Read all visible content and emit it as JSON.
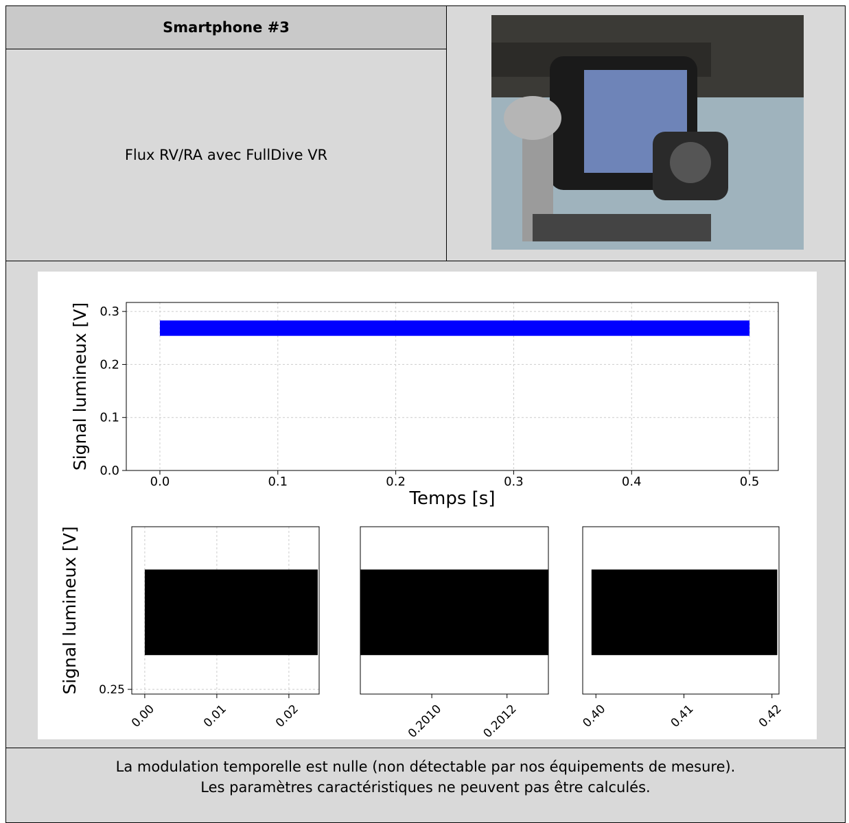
{
  "header": {
    "title": "Smartphone #3",
    "description": "Flux RV/RA avec FullDive VR"
  },
  "footer": {
    "lines": [
      "La modulation temporelle est nulle (non détectable par nos équipements de mesure).",
      "Les paramètres caractéristiques ne peuvent pas être calculés."
    ]
  },
  "chart_data": [
    {
      "type": "band",
      "xlabel": "Temps [s]",
      "ylabel": "Signal lumineux [V]",
      "color": "#0000ff",
      "grid": true,
      "x_range": [
        0,
        0.5
      ],
      "band": [
        0.254,
        0.283
      ],
      "xlim": [
        -0.0285,
        0.5244
      ],
      "ylim": [
        0,
        0.317
      ],
      "xticks": [
        {
          "value": 0,
          "label": "0.0"
        },
        0.1,
        0.2,
        0.3,
        0.4,
        0.5
      ],
      "yticks": [
        {
          "value": 0,
          "label": "0.0"
        },
        0.1,
        0.2,
        0.3
      ]
    },
    {
      "type": "band",
      "ylabel": "Signal lumineux [V]",
      "color": "#000000",
      "grid": true,
      "x_range": [
        0,
        0.024
      ],
      "band": [
        0.258,
        0.278
      ],
      "xlim": [
        -0.0018,
        0.0242
      ],
      "ylim": [
        0.2489,
        0.288
      ],
      "xticks": [
        {
          "value": 0,
          "label": "0.00"
        },
        0.01,
        0.02
      ],
      "yticks": [
        0.25
      ]
    },
    {
      "type": "band",
      "color": "#000000",
      "grid": false,
      "x_range": [
        0.20081,
        0.20131
      ],
      "band": [
        0.258,
        0.278
      ],
      "xlim": [
        0.20081,
        0.20131
      ],
      "ylim": [
        0.2489,
        0.288
      ],
      "xticks": [
        {
          "value": 0.201,
          "label": "0.2010"
        },
        0.2012
      ],
      "yticks": []
    },
    {
      "type": "band",
      "color": "#000000",
      "grid": false,
      "x_range": [
        0.3995,
        0.4206
      ],
      "band": [
        0.258,
        0.278
      ],
      "xlim": [
        0.3985,
        0.4208
      ],
      "ylim": [
        0.2489,
        0.288
      ],
      "xticks": [
        {
          "value": 0.4,
          "label": "0.40"
        },
        0.41,
        0.42
      ],
      "yticks": []
    }
  ]
}
